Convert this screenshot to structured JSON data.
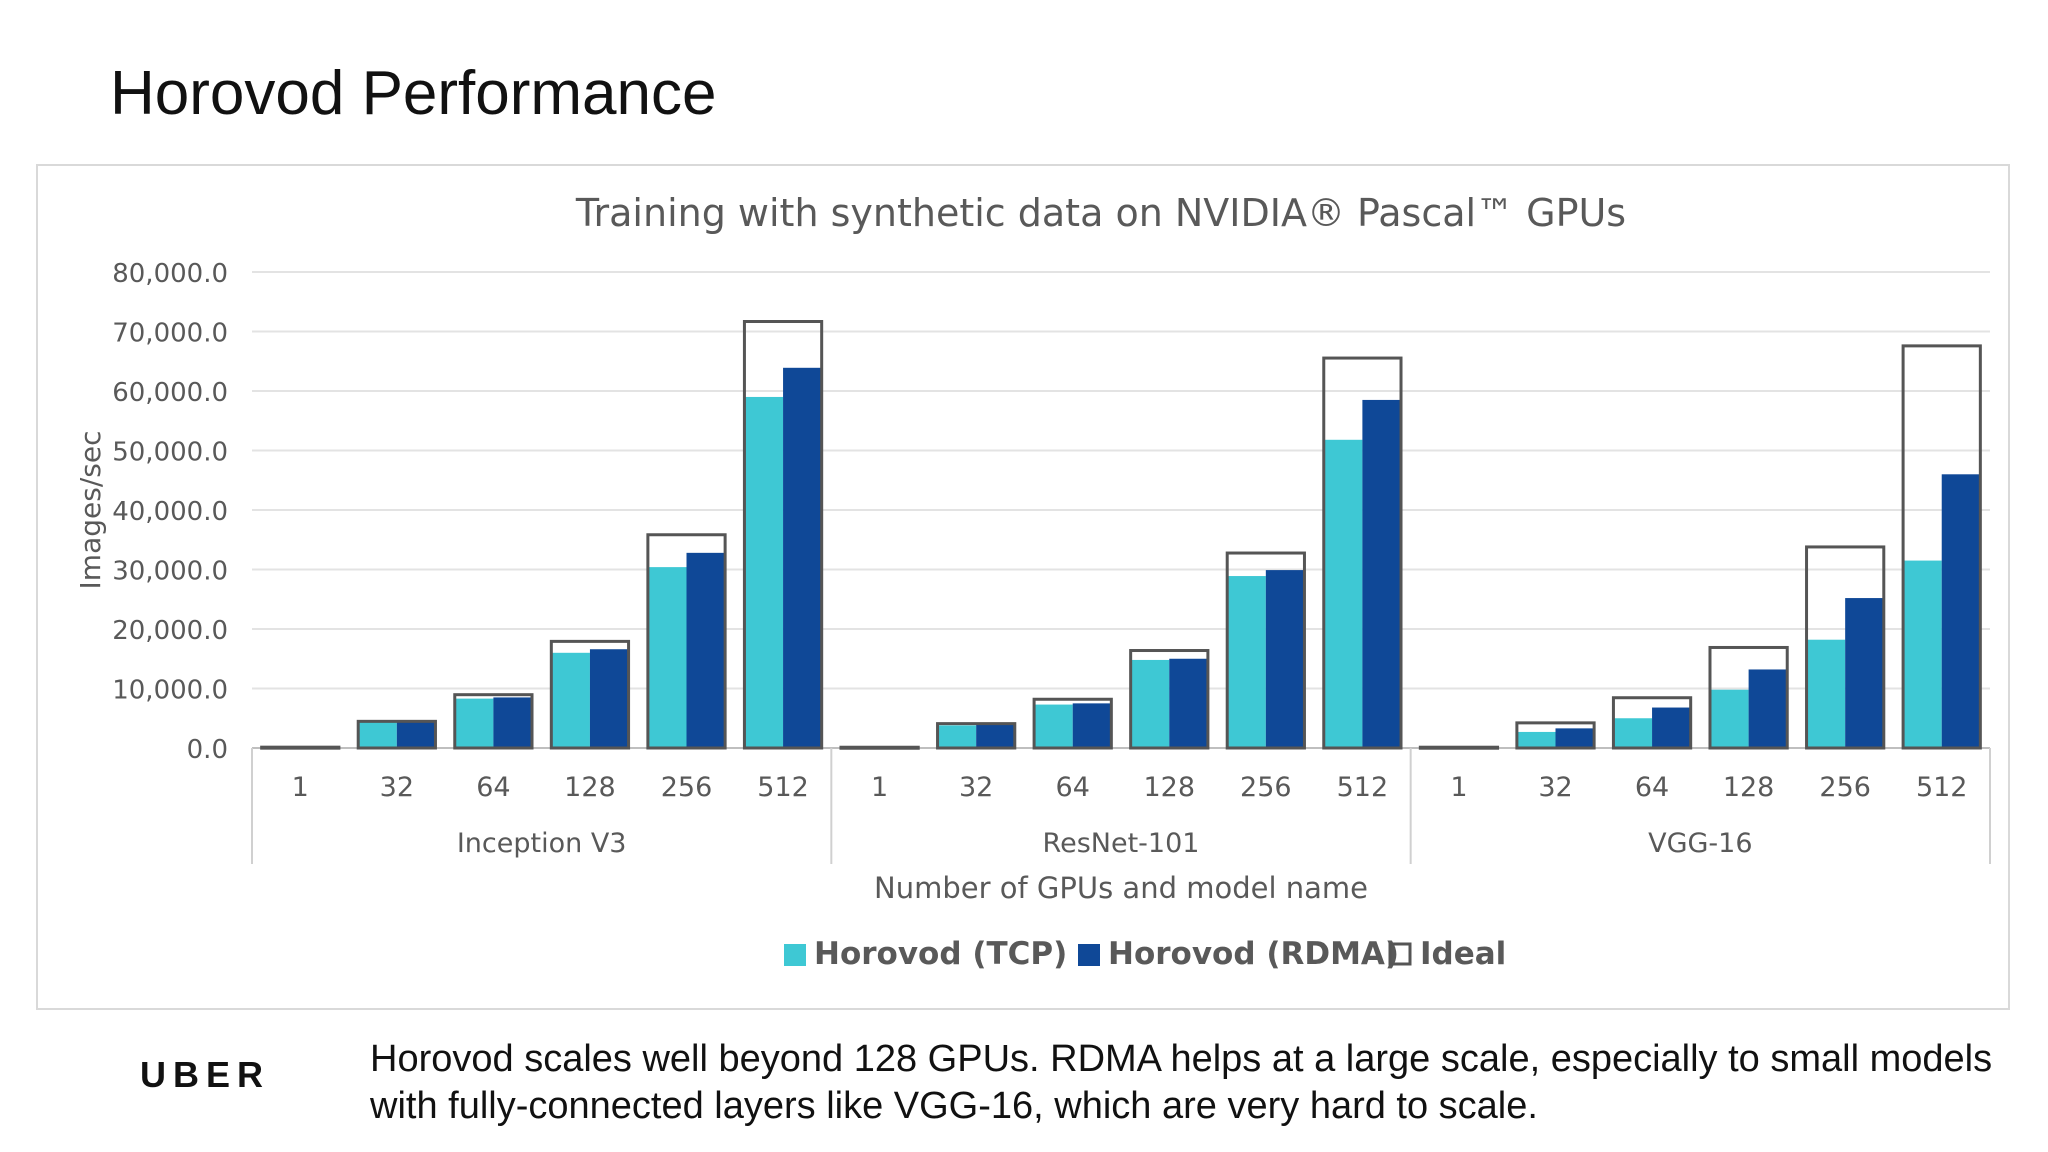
{
  "slide": {
    "title": "Horovod Performance",
    "footer_logo": "UBER",
    "footer_text": "Horovod scales well beyond 128 GPUs. RDMA helps at a large scale, especially to small models with fully-connected layers like VGG-16, which are very hard to scale."
  },
  "chart_data": {
    "type": "bar",
    "title": "Training with synthetic data on NVIDIA® Pascal™ GPUs",
    "xlabel": "Number of GPUs and model name",
    "ylabel": "Images/sec",
    "ylim": [
      0,
      80000
    ],
    "yticks": [
      "0.0",
      "10,000.0",
      "20,000.0",
      "30,000.0",
      "40,000.0",
      "50,000.0",
      "60,000.0",
      "70,000.0",
      "80,000.0"
    ],
    "grid": true,
    "legend_position": "bottom",
    "groups": [
      {
        "name": "Inception V3",
        "categories": [
          "1",
          "32",
          "64",
          "128",
          "256",
          "512"
        ]
      },
      {
        "name": "ResNet-101",
        "categories": [
          "1",
          "32",
          "64",
          "128",
          "256",
          "512"
        ]
      },
      {
        "name": "VGG-16",
        "categories": [
          "1",
          "32",
          "64",
          "128",
          "256",
          "512"
        ]
      }
    ],
    "series": [
      {
        "name": "Horovod (TCP)",
        "color": "#3ec8d4",
        "style": "filled",
        "values": [
          [
            130,
            4300,
            8300,
            16000,
            30400,
            59000
          ],
          [
            90,
            3800,
            7300,
            14800,
            28900,
            51800
          ],
          [
            110,
            2700,
            5000,
            9800,
            18200,
            31500
          ]
        ]
      },
      {
        "name": "Horovod (RDMA)",
        "color": "#0f4897",
        "style": "filled",
        "values": [
          [
            135,
            4350,
            8500,
            16600,
            32800,
            63900
          ],
          [
            95,
            3900,
            7500,
            15000,
            29900,
            58500
          ],
          [
            115,
            3300,
            6800,
            13200,
            25200,
            46000
          ]
        ]
      },
      {
        "name": "Ideal",
        "color": "#555555",
        "style": "outline",
        "values": [
          [
            140,
            4480,
            8960,
            17920,
            35840,
            71680
          ],
          [
            128,
            4096,
            8192,
            16384,
            32768,
            65536
          ],
          [
            132,
            4224,
            8448,
            16896,
            33792,
            67584
          ]
        ]
      }
    ]
  }
}
